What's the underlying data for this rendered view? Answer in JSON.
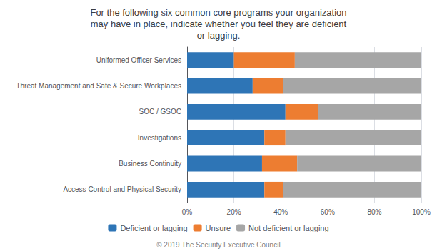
{
  "chart_data": {
    "type": "bar",
    "orientation": "horizontal",
    "stacked": true,
    "title": "For the following six common core programs your organization\nmay have in place, indicate whether you feel they are deficient\nor lagging.",
    "annotations": [
      "© 2019 The Security Executive Council"
    ],
    "categories": [
      "Access Control and Physical Security",
      "Business Continuity",
      "Investigations",
      "SOC / GSOC",
      "Threat Management and Safe & Secure Workplaces",
      "Uniformed Officer Services"
    ],
    "series": [
      {
        "name": "Deficient or lagging",
        "color": "#2E75B6",
        "values": [
          33,
          32,
          33,
          42,
          28,
          20
        ]
      },
      {
        "name": "Unsure",
        "color": "#ED7D31",
        "values": [
          8,
          15,
          9,
          14,
          13,
          26
        ]
      },
      {
        "name": "Not deficient or lagging",
        "color": "#A6A6A6",
        "values": [
          59,
          53,
          58,
          44,
          59,
          54
        ]
      }
    ],
    "xlim": [
      0,
      100
    ],
    "xticks": [
      {
        "value": 0,
        "label": "0%"
      },
      {
        "value": 20,
        "label": "20%"
      },
      {
        "value": 40,
        "label": "40%"
      },
      {
        "value": 60,
        "label": "60%"
      },
      {
        "value": 80,
        "label": "80%"
      },
      {
        "value": 100,
        "label": "100%"
      }
    ],
    "grid": true,
    "legend": "bottom"
  }
}
